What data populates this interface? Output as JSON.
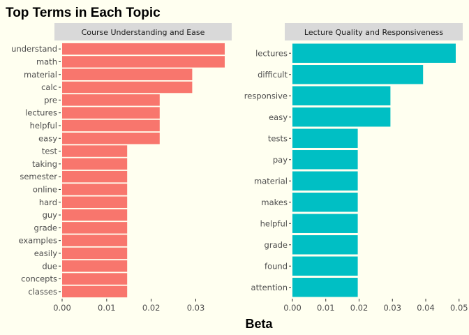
{
  "chart_data": {
    "type": "bar",
    "title": "Top Terms in Each Topic",
    "xlabel": "Beta",
    "ylabel": "",
    "orientation": "horizontal",
    "grid": false,
    "panels": [
      {
        "name": "Course Understanding and Ease",
        "color": "#F8766D",
        "xlim": [
          0,
          0.0365
        ],
        "xticks": [
          0.0,
          0.01,
          0.02,
          0.03
        ],
        "xtick_labels": [
          "0.00",
          "0.01",
          "0.02",
          "0.03"
        ],
        "categories": [
          "understand",
          "math",
          "material",
          "calc",
          "pre",
          "lectures",
          "helpful",
          "easy",
          "test",
          "taking",
          "semester",
          "online",
          "hard",
          "guy",
          "grade",
          "examples",
          "easily",
          "due",
          "concepts",
          "classes"
        ],
        "values": [
          0.0365,
          0.0365,
          0.0292,
          0.0292,
          0.0219,
          0.0219,
          0.0219,
          0.0219,
          0.0146,
          0.0146,
          0.0146,
          0.0146,
          0.0146,
          0.0146,
          0.0146,
          0.0146,
          0.0146,
          0.0146,
          0.0146,
          0.0146
        ]
      },
      {
        "name": "Lecture Quality and Responsiveness",
        "color": "#00BFC4",
        "xlim": [
          0,
          0.049
        ],
        "xticks": [
          0.0,
          0.01,
          0.02,
          0.03,
          0.04,
          0.05
        ],
        "xtick_labels": [
          "0.00",
          "0.01",
          "0.02",
          "0.03",
          "0.04",
          "0.05"
        ],
        "categories": [
          "lectures",
          "difficult",
          "responsive",
          "easy",
          "tests",
          "pay",
          "material",
          "makes",
          "helpful",
          "grade",
          "found",
          "attention"
        ],
        "values": [
          0.049,
          0.0392,
          0.0294,
          0.0294,
          0.0196,
          0.0196,
          0.0196,
          0.0196,
          0.0196,
          0.0196,
          0.0196,
          0.0196
        ]
      }
    ]
  }
}
